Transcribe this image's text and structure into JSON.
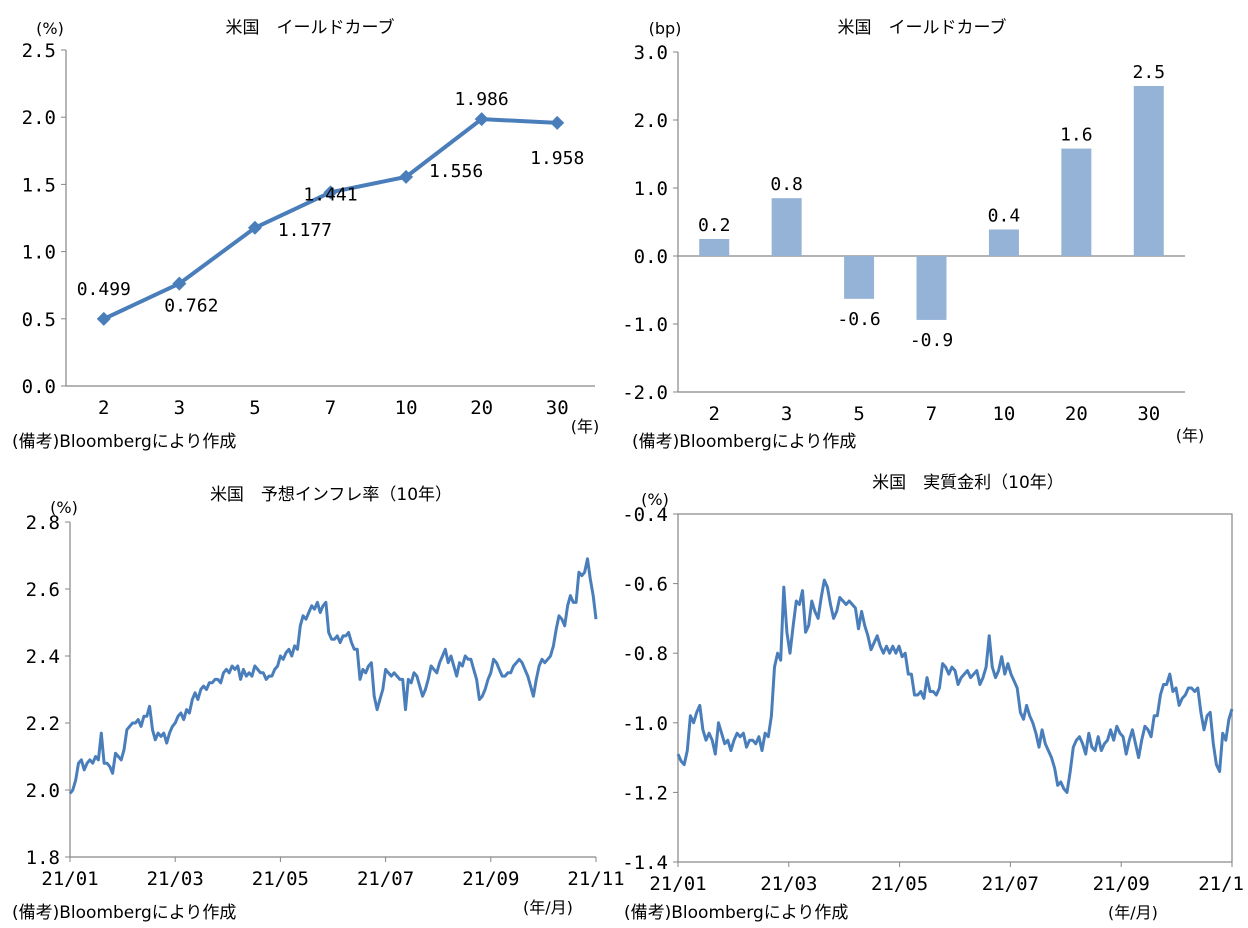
{
  "colors": {
    "line": "#4a7ebb",
    "bar": "#95b3d7",
    "axis": "#868686",
    "text": "#000000"
  },
  "chart_data": [
    {
      "id": "yield_level",
      "type": "line",
      "title": "米国　イールドカーブ",
      "y_unit": "(%)",
      "x_unit": "(年)",
      "note": "(備考)Bloombergにより作成",
      "categories": [
        "2",
        "3",
        "5",
        "7",
        "10",
        "20",
        "30"
      ],
      "series": [
        {
          "values": [
            0.499,
            0.762,
            1.177,
            1.441,
            1.556,
            1.986,
            1.958
          ]
        }
      ],
      "data_labels": [
        "0.499",
        "0.762",
        "1.177",
        "1.441",
        "1.556",
        "1.986",
        "1.958"
      ],
      "ylim": [
        0,
        2.5
      ],
      "yticks": [
        "0.0",
        "0.5",
        "1.0",
        "1.5",
        "2.0",
        "2.5"
      ],
      "marker": "diamond",
      "grid": false
    },
    {
      "id": "yield_change",
      "type": "bar",
      "title": "米国　イールドカーブ",
      "y_unit": "(bp)",
      "x_unit": "(年)",
      "note": "(備考)Bloombergにより作成",
      "categories": [
        "2",
        "3",
        "5",
        "7",
        "10",
        "20",
        "30"
      ],
      "values": [
        0.25,
        0.85,
        -0.63,
        -0.94,
        0.39,
        1.58,
        2.5
      ],
      "data_labels": [
        "0.2",
        "0.8",
        "-0.6",
        "-0.9",
        "0.4",
        "1.6",
        "2.5"
      ],
      "ylim": [
        -2,
        3
      ],
      "yticks": [
        "-2.0",
        "-1.0",
        "0.0",
        "1.0",
        "2.0",
        "3.0"
      ],
      "grid": false
    },
    {
      "id": "breakeven",
      "type": "line",
      "title": "米国　予想インフレ率（10年）",
      "y_unit": "(%)",
      "x_unit": "(年/月)",
      "note": "(備考)Bloombergにより作成",
      "xticks": [
        "21/01",
        "21/03",
        "21/05",
        "21/07",
        "21/09",
        "21/11"
      ],
      "ylim": [
        1.8,
        2.8
      ],
      "yticks": [
        "1.8",
        "2.0",
        "2.2",
        "2.4",
        "2.6",
        "2.8"
      ],
      "series": [
        {
          "values": [
            1.99,
            2.0,
            2.03,
            2.08,
            2.09,
            2.06,
            2.08,
            2.09,
            2.08,
            2.1,
            2.09,
            2.17,
            2.08,
            2.08,
            2.07,
            2.05,
            2.11,
            2.1,
            2.09,
            2.12,
            2.18,
            2.19,
            2.2,
            2.2,
            2.21,
            2.19,
            2.22,
            2.22,
            2.25,
            2.18,
            2.15,
            2.17,
            2.16,
            2.17,
            2.14,
            2.17,
            2.19,
            2.2,
            2.22,
            2.23,
            2.21,
            2.24,
            2.23,
            2.27,
            2.29,
            2.27,
            2.3,
            2.31,
            2.3,
            2.32,
            2.32,
            2.33,
            2.33,
            2.32,
            2.35,
            2.36,
            2.35,
            2.37,
            2.36,
            2.37,
            2.33,
            2.36,
            2.34,
            2.35,
            2.34,
            2.37,
            2.36,
            2.35,
            2.35,
            2.33,
            2.34,
            2.34,
            2.36,
            2.37,
            2.4,
            2.39,
            2.41,
            2.42,
            2.4,
            2.43,
            2.42,
            2.49,
            2.52,
            2.51,
            2.53,
            2.55,
            2.54,
            2.56,
            2.53,
            2.55,
            2.56,
            2.47,
            2.45,
            2.45,
            2.46,
            2.44,
            2.46,
            2.46,
            2.47,
            2.44,
            2.42,
            2.42,
            2.33,
            2.36,
            2.35,
            2.37,
            2.38,
            2.28,
            2.24,
            2.27,
            2.3,
            2.36,
            2.35,
            2.34,
            2.35,
            2.34,
            2.33,
            2.33,
            2.24,
            2.33,
            2.32,
            2.35,
            2.34,
            2.31,
            2.28,
            2.3,
            2.33,
            2.37,
            2.36,
            2.35,
            2.38,
            2.4,
            2.42,
            2.38,
            2.4,
            2.37,
            2.34,
            2.38,
            2.37,
            2.4,
            2.39,
            2.39,
            2.36,
            2.33,
            2.27,
            2.28,
            2.3,
            2.33,
            2.35,
            2.39,
            2.38,
            2.36,
            2.34,
            2.34,
            2.35,
            2.35,
            2.37,
            2.38,
            2.39,
            2.38,
            2.36,
            2.34,
            2.31,
            2.28,
            2.33,
            2.37,
            2.39,
            2.38,
            2.39,
            2.4,
            2.43,
            2.48,
            2.52,
            2.51,
            2.49,
            2.55,
            2.58,
            2.56,
            2.56,
            2.65,
            2.64,
            2.65,
            2.69,
            2.63,
            2.58,
            2.51
          ]
        }
      ],
      "grid": false
    },
    {
      "id": "real_rate",
      "type": "line",
      "title": "米国　実質金利（10年）",
      "y_unit": "(%)",
      "x_unit": "(年/月)",
      "note": "(備考)Bloombergにより作成",
      "xticks": [
        "21/01",
        "21/03",
        "21/05",
        "21/07",
        "21/09",
        "21/1"
      ],
      "ylim": [
        -1.4,
        -0.4
      ],
      "yticks": [
        "-1.4",
        "-1.2",
        "-1.0",
        "-0.8",
        "-0.6",
        "-0.4"
      ],
      "series": [
        {
          "values": [
            -1.09,
            -1.11,
            -1.12,
            -1.08,
            -0.98,
            -1.0,
            -0.97,
            -0.95,
            -1.02,
            -1.05,
            -1.03,
            -1.05,
            -1.09,
            -1.0,
            -1.03,
            -1.06,
            -1.05,
            -1.08,
            -1.05,
            -1.03,
            -1.04,
            -1.03,
            -1.07,
            -1.05,
            -1.05,
            -1.06,
            -1.04,
            -1.08,
            -1.03,
            -1.04,
            -0.98,
            -0.84,
            -0.8,
            -0.82,
            -0.61,
            -0.74,
            -0.8,
            -0.72,
            -0.65,
            -0.66,
            -0.62,
            -0.74,
            -0.72,
            -0.65,
            -0.68,
            -0.7,
            -0.64,
            -0.59,
            -0.61,
            -0.66,
            -0.7,
            -0.68,
            -0.64,
            -0.65,
            -0.66,
            -0.65,
            -0.66,
            -0.67,
            -0.73,
            -0.68,
            -0.72,
            -0.75,
            -0.79,
            -0.77,
            -0.75,
            -0.78,
            -0.8,
            -0.78,
            -0.8,
            -0.78,
            -0.8,
            -0.78,
            -0.81,
            -0.8,
            -0.86,
            -0.86,
            -0.92,
            -0.92,
            -0.91,
            -0.93,
            -0.87,
            -0.91,
            -0.91,
            -0.92,
            -0.9,
            -0.83,
            -0.84,
            -0.86,
            -0.84,
            -0.85,
            -0.89,
            -0.87,
            -0.86,
            -0.85,
            -0.87,
            -0.86,
            -0.85,
            -0.89,
            -0.87,
            -0.84,
            -0.75,
            -0.84,
            -0.87,
            -0.85,
            -0.81,
            -0.86,
            -0.83,
            -0.86,
            -0.88,
            -0.9,
            -0.97,
            -0.99,
            -0.95,
            -0.98,
            -1.0,
            -1.03,
            -1.07,
            -1.02,
            -1.06,
            -1.08,
            -1.1,
            -1.13,
            -1.18,
            -1.17,
            -1.19,
            -1.2,
            -1.14,
            -1.07,
            -1.05,
            -1.04,
            -1.06,
            -1.09,
            -1.03,
            -1.07,
            -1.08,
            -1.04,
            -1.08,
            -1.06,
            -1.05,
            -1.02,
            -1.05,
            -1.01,
            -1.03,
            -1.04,
            -1.09,
            -1.05,
            -1.02,
            -1.06,
            -1.1,
            -1.05,
            -1.01,
            -1.02,
            -1.04,
            -0.98,
            -0.98,
            -0.92,
            -0.89,
            -0.89,
            -0.86,
            -0.91,
            -0.9,
            -0.95,
            -0.93,
            -0.92,
            -0.9,
            -0.9,
            -0.91,
            -0.9,
            -0.97,
            -1.02,
            -0.98,
            -0.97,
            -1.06,
            -1.12,
            -1.14,
            -1.03,
            -1.05,
            -0.99,
            -0.96
          ]
        }
      ],
      "grid": false
    }
  ]
}
